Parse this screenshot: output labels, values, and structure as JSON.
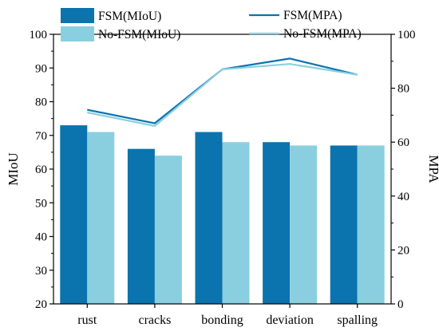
{
  "chart_data": {
    "type": "bar+line",
    "categories": [
      "rust",
      "cracks",
      "bonding",
      "deviation",
      "spalling"
    ],
    "bar_series": [
      {
        "name": "FSM(MIoU)",
        "values": [
          73,
          66,
          71,
          68,
          67
        ]
      },
      {
        "name": "No-FSM(MIoU)",
        "values": [
          71,
          64,
          68,
          67,
          67
        ]
      }
    ],
    "line_series": [
      {
        "name": "FSM(MPA)",
        "values": [
          72,
          67,
          87,
          91,
          85
        ]
      },
      {
        "name": "No-FSM(MPA)",
        "values": [
          71,
          66,
          87,
          89,
          85
        ]
      }
    ],
    "ylabel_left": "MIoU",
    "ylim_left": [
      20,
      100
    ],
    "yticks_left": [
      "20",
      "30",
      "40",
      "50",
      "60",
      "70",
      "80",
      "90",
      "100"
    ],
    "ylabel_right": "MPA",
    "ylim_right": [
      0,
      100
    ],
    "yticks_right": [
      "0",
      "20",
      "40",
      "60",
      "80",
      "100"
    ],
    "grid": false,
    "legend_placement": [
      "top-left",
      "top-right"
    ],
    "colors": {
      "FSM(MIoU)": "#0b73ad",
      "No-FSM(MIoU)": "#8acfe0",
      "FSM(MPA)": "#0b73ad",
      "No-FSM(MPA)": "#8acfe0"
    }
  }
}
